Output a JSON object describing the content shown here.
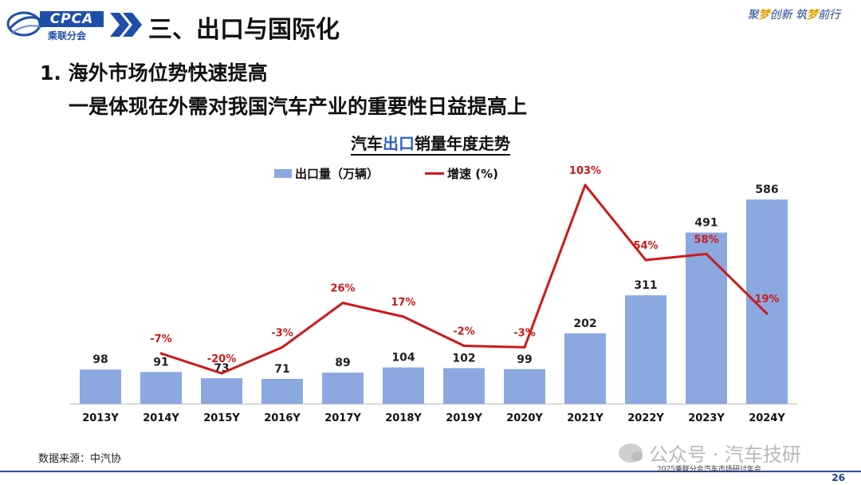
{
  "header": {
    "logo_text": "CPCA",
    "logo_cn": "乘联分会",
    "section_title": "三、出口与国际化",
    "slogan_parts": [
      "聚",
      "梦",
      "创新 ",
      "筑",
      "梦",
      "前行"
    ]
  },
  "heading1": "1. 海外市场位势快速提高",
  "heading2": "一是体现在外需对我国汽车产业的重要性日益提高上",
  "chart_title": {
    "part1": "汽车",
    "part2": "出口",
    "part3": "销量年度走势"
  },
  "chart_data": {
    "type": "bar",
    "title": "汽车出口销量年度走势",
    "categories": [
      "2013Y",
      "2014Y",
      "2015Y",
      "2016Y",
      "2017Y",
      "2018Y",
      "2019Y",
      "2020Y",
      "2021Y",
      "2022Y",
      "2023Y",
      "2024Y"
    ],
    "series": [
      {
        "name": "出口量（万辆）",
        "type": "bar",
        "values": [
          98,
          91,
          73,
          71,
          89,
          104,
          102,
          99,
          202,
          311,
          491,
          586
        ],
        "color": "#8ba8e0"
      },
      {
        "name": "增速 (%)",
        "type": "line",
        "values": [
          null,
          -7,
          -20,
          -3,
          26,
          17,
          -2,
          -3,
          103,
          54,
          58,
          19
        ],
        "labels": [
          "",
          "-7%",
          "-20%",
          "-3%",
          "26%",
          "17%",
          "-2%",
          "-3%",
          "103%",
          "54%",
          "58%",
          "19%"
        ],
        "color": "#cc1a1a"
      }
    ],
    "legend_position": "top-center",
    "grid": false
  },
  "source_text": "数据来源：中汽协",
  "watermark_text": "公众号 · 汽车技研",
  "footer_text": "2025乘联分会汽车市场研讨年会",
  "page_number": "26"
}
